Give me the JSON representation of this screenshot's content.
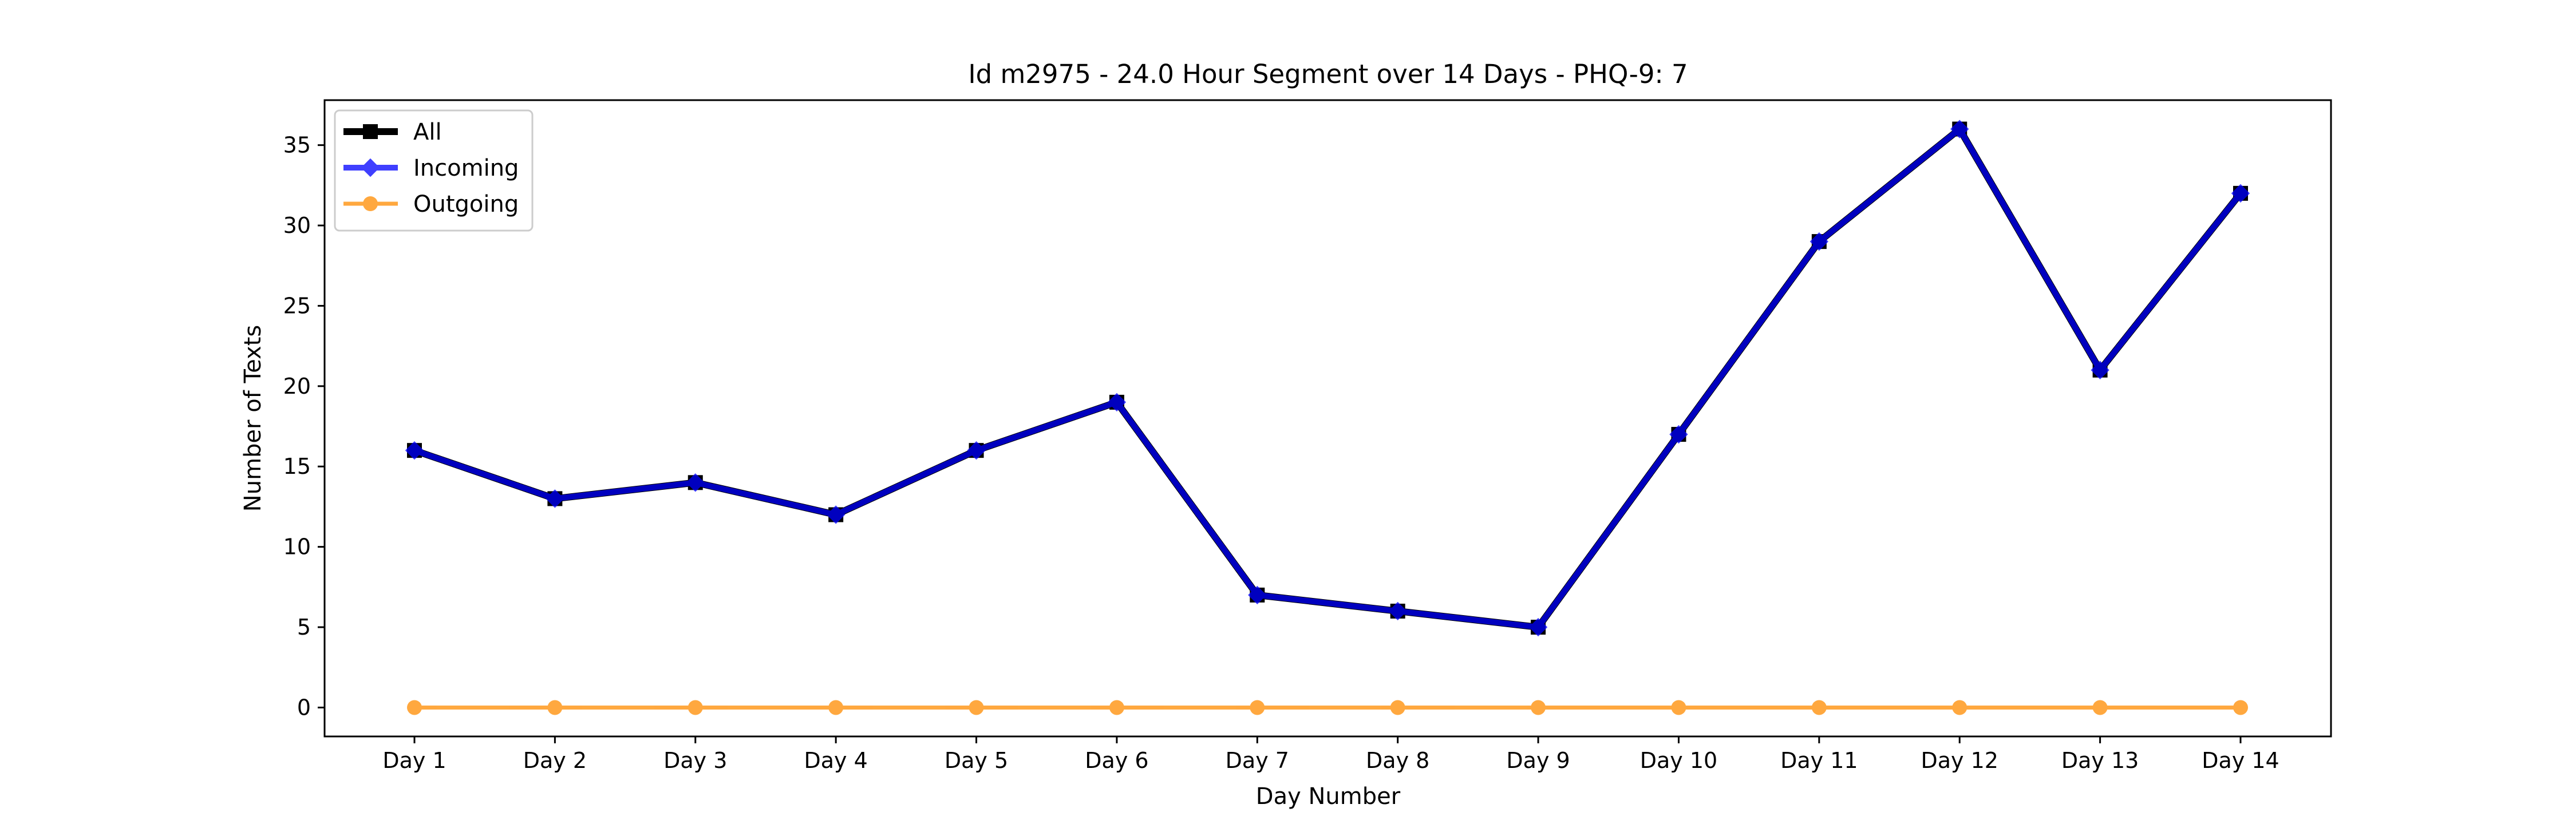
{
  "chart_data": {
    "type": "line",
    "title": "Id m2975 - 24.0 Hour Segment over 14 Days - PHQ-9: 7",
    "xlabel": "Day Number",
    "ylabel": "Number of Texts",
    "categories": [
      "Day 1",
      "Day 2",
      "Day 3",
      "Day 4",
      "Day 5",
      "Day 6",
      "Day 7",
      "Day 8",
      "Day 9",
      "Day 10",
      "Day 11",
      "Day 12",
      "Day 13",
      "Day 14"
    ],
    "ylim": [
      -1.8,
      37.8
    ],
    "yticks": [
      0,
      5,
      10,
      15,
      20,
      25,
      30,
      35
    ],
    "grid": false,
    "legend_position": "top-left",
    "series": [
      {
        "name": "All",
        "color": "#000000",
        "marker": "square",
        "values": [
          16,
          13,
          14,
          12,
          16,
          19,
          7,
          6,
          5,
          17,
          29,
          36,
          21,
          32
        ]
      },
      {
        "name": "Incoming",
        "color": "#0000ff",
        "marker": "diamond",
        "values": [
          16,
          13,
          14,
          12,
          16,
          19,
          7,
          6,
          5,
          17,
          29,
          36,
          21,
          32
        ]
      },
      {
        "name": "Outgoing",
        "color": "#ff8c00",
        "marker": "circle",
        "values": [
          0,
          0,
          0,
          0,
          0,
          0,
          0,
          0,
          0,
          0,
          0,
          0,
          0,
          0
        ]
      }
    ]
  }
}
